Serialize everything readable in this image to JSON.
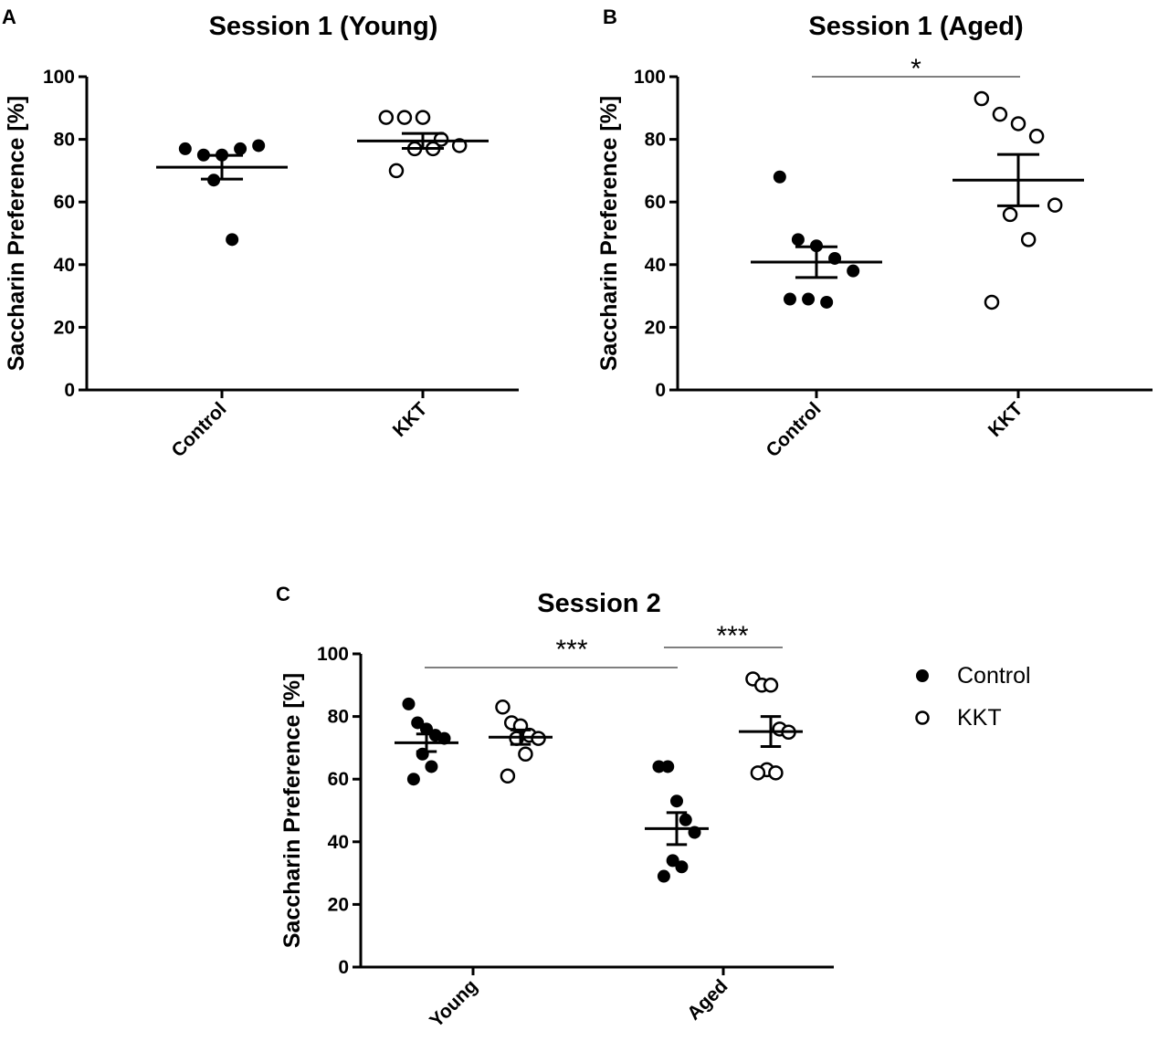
{
  "chart_data": [
    {
      "type": "scatter",
      "panel": "A",
      "title": "Session 1 (Young)",
      "ylabel": "Saccharin Preference [%]",
      "xlabel": "",
      "ylim": [
        0,
        100
      ],
      "yticks": [
        "0",
        "20",
        "40",
        "60",
        "80",
        "100"
      ],
      "categories": [
        "Control",
        "KKT"
      ],
      "series": [
        {
          "name": "Control",
          "category": "Control",
          "filled": true,
          "values": [
            77,
            75,
            75,
            77,
            78,
            67,
            48
          ],
          "mean": 71.1,
          "sem": 3.8
        },
        {
          "name": "KKT",
          "category": "KKT",
          "filled": false,
          "values": [
            87,
            87,
            87,
            80,
            78,
            77,
            77,
            70
          ],
          "mean": 79.5,
          "sem": 2.4
        }
      ],
      "significance": []
    },
    {
      "type": "scatter",
      "panel": "B",
      "title": "Session 1 (Aged)",
      "ylabel": "Saccharin Preference [%]",
      "xlabel": "",
      "ylim": [
        0,
        100
      ],
      "yticks": [
        "0",
        "20",
        "40",
        "60",
        "80",
        "100"
      ],
      "categories": [
        "Control",
        "KKT"
      ],
      "series": [
        {
          "name": "Control",
          "category": "Control",
          "filled": true,
          "values": [
            68,
            48,
            46,
            42,
            38,
            29,
            28,
            29
          ],
          "mean": 40.8,
          "sem": 4.9
        },
        {
          "name": "KKT",
          "category": "KKT",
          "filled": false,
          "values": [
            93,
            88,
            85,
            81,
            59,
            56,
            48,
            28
          ],
          "mean": 67.0,
          "sem": 8.2
        }
      ],
      "significance": [
        {
          "from": "Control",
          "to": "KKT",
          "label": "*"
        }
      ]
    },
    {
      "type": "scatter",
      "panel": "C",
      "title": "Session 2",
      "ylabel": "Saccharin Preference [%]",
      "xlabel": "",
      "ylim": [
        0,
        100
      ],
      "yticks": [
        "0",
        "20",
        "40",
        "60",
        "80",
        "100"
      ],
      "categories": [
        "Young",
        "Aged"
      ],
      "series": [
        {
          "name": "Control",
          "category": "Young",
          "filled": true,
          "values": [
            84,
            78,
            76,
            74,
            73,
            68,
            64,
            60
          ],
          "mean": 71.6,
          "sem": 2.8
        },
        {
          "name": "KKT",
          "category": "Young",
          "filled": false,
          "values": [
            83,
            78,
            77,
            74,
            73,
            73,
            68,
            61
          ],
          "mean": 73.4,
          "sem": 2.3
        },
        {
          "name": "Control",
          "category": "Aged",
          "filled": true,
          "values": [
            64,
            64,
            53,
            47,
            43,
            34,
            32,
            29
          ],
          "mean": 44.2,
          "sem": 5.1
        },
        {
          "name": "KKT",
          "category": "Aged",
          "filled": false,
          "values": [
            92,
            90,
            90,
            76,
            75,
            63,
            62,
            62
          ],
          "mean": 75.2,
          "sem": 4.8
        }
      ],
      "significance": [
        {
          "from": "Young",
          "to": "Aged",
          "label": "***"
        },
        {
          "from": "Aged Control",
          "to": "Aged KKT",
          "label": "***"
        }
      ]
    }
  ],
  "legend": {
    "items": [
      {
        "label": "Control",
        "filled": true
      },
      {
        "label": "KKT",
        "filled": false
      }
    ],
    "position": "right"
  }
}
